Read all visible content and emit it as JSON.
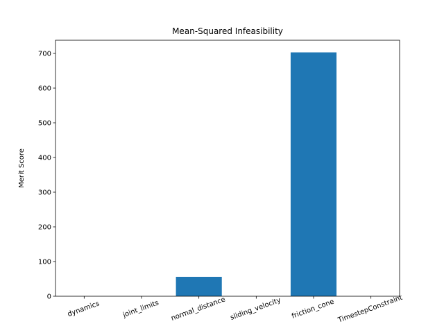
{
  "chart_data": {
    "type": "bar",
    "title": "Mean-Squared Infeasibility",
    "xlabel": "",
    "ylabel": "Merit Score",
    "categories": [
      "dynamics",
      "joint_limits",
      "normal_distance",
      "sliding_velocity",
      "friction_cone",
      "TimestepConstraint"
    ],
    "values": [
      0,
      0,
      56,
      0,
      703,
      0
    ],
    "ylim": [
      0,
      738
    ],
    "yticks": [
      0,
      100,
      200,
      300,
      400,
      500,
      600,
      700
    ],
    "bar_color": "#1f77b4",
    "grid": false,
    "legend": "none",
    "xtick_rotation": "rotated"
  }
}
